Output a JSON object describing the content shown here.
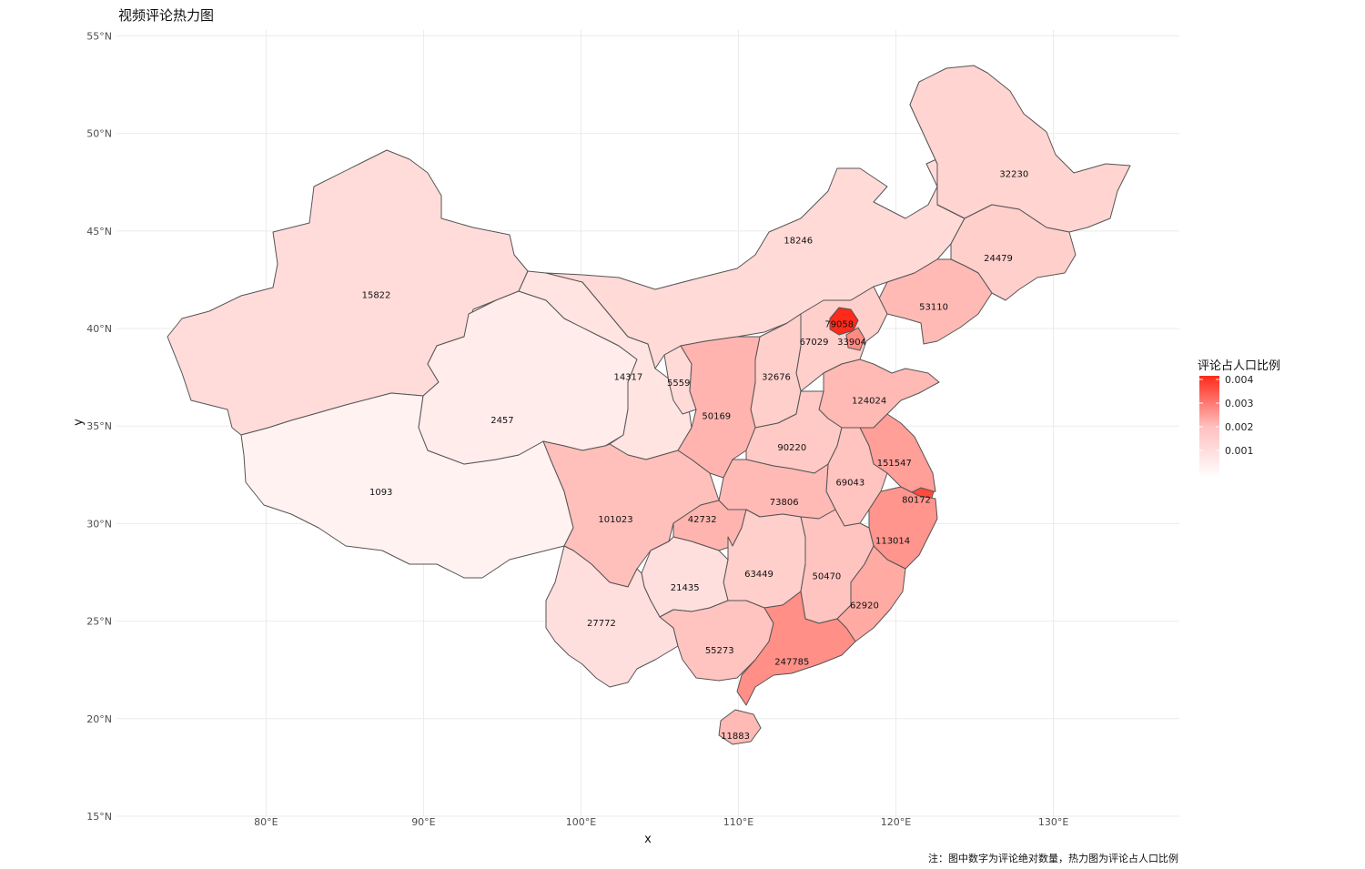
{
  "title": "视频评论热力图",
  "caption": "注：图中数字为评论绝对数量，热力图为评论占人口比例",
  "colors": {
    "low": "#ffffff",
    "high": "#ff2a1a",
    "border": "#555555",
    "grid": "#ebebeb"
  },
  "chart_data": {
    "type": "heatmap",
    "xlabel": "x",
    "ylabel": "y",
    "xlim": [
      70.5,
      138
    ],
    "ylim": [
      15,
      55.3
    ],
    "x_ticks": [
      80,
      90,
      100,
      110,
      120,
      130
    ],
    "x_tick_labels": [
      "80°E",
      "90°E",
      "100°E",
      "110°E",
      "120°E",
      "130°E"
    ],
    "y_ticks": [
      15,
      20,
      25,
      30,
      35,
      40,
      45,
      50,
      55
    ],
    "y_tick_labels": [
      "15°N",
      "20°N",
      "25°N",
      "30°N",
      "35°N",
      "40°N",
      "45°N",
      "50°N",
      "55°N"
    ],
    "legend": {
      "title": "评论占人口比例",
      "placement": "right",
      "min": 0,
      "max": 0.004,
      "ticks": [
        0.001,
        0.002,
        0.003,
        0.004
      ],
      "tick_labels": [
        "0.001",
        "0.002",
        "0.003",
        "0.004"
      ]
    },
    "regions": [
      {
        "label": "15822",
        "lon": 87.0,
        "lat": 41.7,
        "ratio": 0.00065
      },
      {
        "label": "1093",
        "lon": 87.3,
        "lat": 31.6,
        "ratio": 0.00025
      },
      {
        "label": "2457",
        "lon": 95.0,
        "lat": 35.3,
        "ratio": 0.00035
      },
      {
        "label": "14317",
        "lon": 103.0,
        "lat": 37.5,
        "ratio": 0.0005
      },
      {
        "label": "5559",
        "lon": 106.2,
        "lat": 37.2,
        "ratio": 0.0007
      },
      {
        "label": "18246",
        "lon": 113.8,
        "lat": 44.5,
        "ratio": 0.0007
      },
      {
        "label": "32230",
        "lon": 127.5,
        "lat": 47.9,
        "ratio": 0.0008
      },
      {
        "label": "24479",
        "lon": 126.5,
        "lat": 43.6,
        "ratio": 0.0009
      },
      {
        "label": "53110",
        "lon": 122.4,
        "lat": 41.1,
        "ratio": 0.0013
      },
      {
        "label": "79058",
        "lon": 116.4,
        "lat": 40.2,
        "ratio": 0.0042
      },
      {
        "label": "67029",
        "lon": 114.8,
        "lat": 39.3,
        "ratio": 0.0009
      },
      {
        "label": "33904",
        "lon": 117.2,
        "lat": 39.3,
        "ratio": 0.0022
      },
      {
        "label": "32676",
        "lon": 112.4,
        "lat": 37.5,
        "ratio": 0.0009
      },
      {
        "label": "50169",
        "lon": 108.6,
        "lat": 35.5,
        "ratio": 0.0014
      },
      {
        "label": "124024",
        "lon": 118.3,
        "lat": 36.3,
        "ratio": 0.0013
      },
      {
        "label": "90220",
        "lon": 113.4,
        "lat": 33.9,
        "ratio": 0.001
      },
      {
        "label": "151547",
        "lon": 119.9,
        "lat": 33.1,
        "ratio": 0.0018
      },
      {
        "label": "69043",
        "lon": 117.1,
        "lat": 32.1,
        "ratio": 0.0011
      },
      {
        "label": "80172",
        "lon": 121.3,
        "lat": 31.2,
        "ratio": 0.0034
      },
      {
        "label": "73806",
        "lon": 112.9,
        "lat": 31.1,
        "ratio": 0.0013
      },
      {
        "label": "101023",
        "lon": 102.2,
        "lat": 30.2,
        "ratio": 0.0012
      },
      {
        "label": "42732",
        "lon": 107.7,
        "lat": 30.2,
        "ratio": 0.0014
      },
      {
        "label": "113014",
        "lon": 119.8,
        "lat": 29.1,
        "ratio": 0.002
      },
      {
        "label": "63449",
        "lon": 111.3,
        "lat": 27.4,
        "ratio": 0.0009
      },
      {
        "label": "50470",
        "lon": 115.6,
        "lat": 27.3,
        "ratio": 0.0011
      },
      {
        "label": "21435",
        "lon": 106.6,
        "lat": 26.7,
        "ratio": 0.0006
      },
      {
        "label": "62920",
        "lon": 118.0,
        "lat": 25.8,
        "ratio": 0.0016
      },
      {
        "label": "27772",
        "lon": 101.3,
        "lat": 24.9,
        "ratio": 0.0006
      },
      {
        "label": "55273",
        "lon": 108.8,
        "lat": 23.5,
        "ratio": 0.0011
      },
      {
        "label": "247785",
        "lon": 113.4,
        "lat": 22.9,
        "ratio": 0.0021
      },
      {
        "label": "11883",
        "lon": 109.8,
        "lat": 19.1,
        "ratio": 0.0013
      }
    ]
  }
}
